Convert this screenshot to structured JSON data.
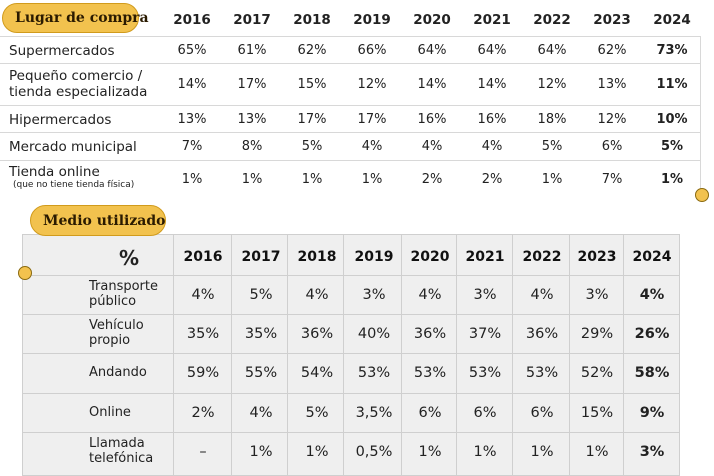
{
  "table1": {
    "title": "Lugar de compra",
    "years": [
      "2016",
      "2017",
      "2018",
      "2019",
      "2020",
      "2021",
      "2022",
      "2023",
      "2024"
    ],
    "rows": [
      {
        "label": "Supermercados",
        "sub": "",
        "values": [
          "65%",
          "61%",
          "62%",
          "66%",
          "64%",
          "64%",
          "64%",
          "62%",
          "73%"
        ]
      },
      {
        "label": "Pequeño comercio /",
        "label2": "tienda especializada",
        "sub": "",
        "values": [
          "14%",
          "17%",
          "15%",
          "12%",
          "14%",
          "14%",
          "12%",
          "13%",
          "11%"
        ]
      },
      {
        "label": "Hipermercados",
        "sub": "",
        "values": [
          "13%",
          "13%",
          "17%",
          "17%",
          "16%",
          "16%",
          "18%",
          "12%",
          "10%"
        ]
      },
      {
        "label": "Mercado municipal",
        "sub": "",
        "values": [
          "7%",
          "8%",
          "5%",
          "4%",
          "4%",
          "4%",
          "5%",
          "6%",
          "5%"
        ]
      },
      {
        "label": "Tienda online",
        "sub": "(que no tiene tienda física)",
        "values": [
          "1%",
          "1%",
          "1%",
          "1%",
          "2%",
          "2%",
          "1%",
          "7%",
          "1%"
        ]
      }
    ]
  },
  "table2": {
    "title": "Medio utilizado",
    "corner": "%",
    "years": [
      "2016",
      "2017",
      "2018",
      "2019",
      "2020",
      "2021",
      "2022",
      "2023",
      "2024"
    ],
    "rows": [
      {
        "label": "Transporte",
        "label2": "público",
        "values": [
          "4%",
          "5%",
          "4%",
          "3%",
          "4%",
          "3%",
          "4%",
          "3%",
          "4%"
        ]
      },
      {
        "label": "Vehículo",
        "label2": "propio",
        "values": [
          "35%",
          "35%",
          "36%",
          "40%",
          "36%",
          "37%",
          "36%",
          "29%",
          "26%"
        ]
      },
      {
        "label": "Andando",
        "label2": "",
        "values": [
          "59%",
          "55%",
          "54%",
          "53%",
          "53%",
          "53%",
          "53%",
          "52%",
          "58%"
        ]
      },
      {
        "label": "Online",
        "label2": "",
        "values": [
          "2%",
          "4%",
          "5%",
          "3,5%",
          "6%",
          "6%",
          "6%",
          "15%",
          "9%"
        ]
      },
      {
        "label": "Llamada",
        "label2": "telefónica",
        "values": [
          "–",
          "1%",
          "1%",
          "0,5%",
          "1%",
          "1%",
          "1%",
          "1%",
          "3%"
        ]
      }
    ]
  },
  "colors": {
    "accent": "#f2c24e",
    "accent_border": "#d19b1c"
  }
}
